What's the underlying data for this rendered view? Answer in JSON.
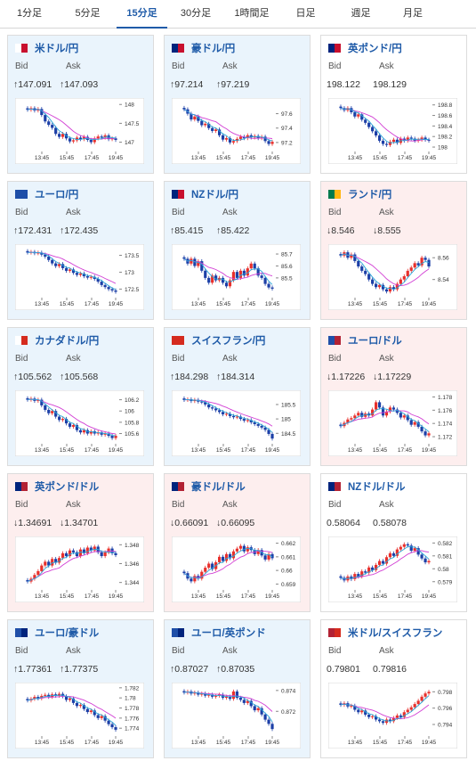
{
  "tabs": [
    {
      "label": "1分足",
      "active": false
    },
    {
      "label": "5分足",
      "active": false
    },
    {
      "label": "15分足",
      "active": true
    },
    {
      "label": "30分足",
      "active": false
    },
    {
      "label": "1時間足",
      "active": false
    },
    {
      "label": "日足",
      "active": false
    },
    {
      "label": "週足",
      "active": false
    },
    {
      "label": "月足",
      "active": false
    }
  ],
  "labels": {
    "bid": "Bid",
    "ask": "Ask"
  },
  "colors": {
    "up_bg": "#eaf4fc",
    "down_bg": "#fdeeee",
    "candle_up": "#e8302c",
    "candle_down": "#1c3fa7",
    "ma_long": "#d23fd4",
    "ma_short": "#2aa6d8",
    "link": "#1f5ba8"
  },
  "x_ticks": [
    "13:45",
    "15:45",
    "17:45",
    "19:45"
  ],
  "pairs": [
    {
      "id": "usdjpy",
      "name": "米ドル/円",
      "flag": [
        "#ffffff",
        "#c8102e"
      ],
      "trend": "up",
      "bid": "↑147.091",
      "ask": "↑147.093",
      "y_ticks": [
        "148",
        "147.5",
        "147"
      ],
      "chart_data": {
        "type": "candlestick",
        "ylim": [
          146.8,
          148.1
        ],
        "close": [
          147.86,
          147.9,
          147.84,
          147.88,
          147.72,
          147.55,
          147.46,
          147.38,
          147.22,
          147.14,
          147.22,
          147.1,
          147.02,
          147.05,
          147.12,
          147.08,
          147.14,
          147.06,
          147.0,
          147.1,
          147.15,
          147.12,
          147.18,
          147.08,
          147.1,
          147.06
        ]
      }
    },
    {
      "id": "audjpy",
      "name": "豪ドル/円",
      "flag": [
        "#00247d",
        "#c8102e"
      ],
      "trend": "up",
      "bid": "↑97.214",
      "ask": "↑97.219",
      "y_ticks": [
        "97.6",
        "97.4",
        "97.2"
      ],
      "chart_data": {
        "type": "candlestick",
        "ylim": [
          97.1,
          97.78
        ],
        "close": [
          97.66,
          97.6,
          97.52,
          97.56,
          97.5,
          97.44,
          97.46,
          97.4,
          97.36,
          97.38,
          97.3,
          97.24,
          97.26,
          97.2,
          97.22,
          97.25,
          97.28,
          97.26,
          97.3,
          97.27,
          97.29,
          97.26,
          97.28,
          97.22,
          97.18,
          97.21
        ]
      }
    },
    {
      "id": "gbpjpy",
      "name": "英ポンド/円",
      "flag": [
        "#00247d",
        "#c8102e"
      ],
      "trend": "flat",
      "bid": "198.122",
      "ask": "198.129",
      "y_ticks": [
        "198.8",
        "198.6",
        "198.4",
        "198.2",
        "198"
      ],
      "chart_data": {
        "type": "candlestick",
        "ylim": [
          197.95,
          198.88
        ],
        "close": [
          198.74,
          198.7,
          198.74,
          198.66,
          198.58,
          198.62,
          198.52,
          198.46,
          198.38,
          198.3,
          198.22,
          198.12,
          198.06,
          198.04,
          198.1,
          198.14,
          198.08,
          198.16,
          198.12,
          198.18,
          198.16,
          198.12,
          198.14,
          198.18,
          198.14,
          198.12
        ]
      }
    },
    {
      "id": "eurjpy",
      "name": "ユーロ/円",
      "flag": [
        "#1f4fa8",
        "#1f4fa8"
      ],
      "trend": "up",
      "bid": "↑172.431",
      "ask": "↑172.435",
      "y_ticks": [
        "173.5",
        "173",
        "172.5"
      ],
      "chart_data": {
        "type": "candlestick",
        "ylim": [
          172.3,
          173.75
        ],
        "close": [
          173.58,
          173.6,
          173.56,
          173.58,
          173.52,
          173.46,
          173.36,
          173.26,
          173.18,
          173.24,
          173.12,
          173.04,
          173.08,
          172.98,
          172.92,
          172.96,
          172.88,
          172.84,
          172.86,
          172.8,
          172.72,
          172.62,
          172.56,
          172.5,
          172.46,
          172.42
        ]
      }
    },
    {
      "id": "nzdjpy",
      "name": "NZドル/円",
      "flag": [
        "#00247d",
        "#c8102e"
      ],
      "trend": "up",
      "bid": "↑85.415",
      "ask": "↑85.422",
      "y_ticks": [
        "85.7",
        "85.6",
        "85.5"
      ],
      "chart_data": {
        "type": "candlestick",
        "ylim": [
          85.35,
          85.76
        ],
        "close": [
          85.66,
          85.62,
          85.66,
          85.6,
          85.64,
          85.56,
          85.5,
          85.46,
          85.52,
          85.48,
          85.5,
          85.46,
          85.43,
          85.48,
          85.55,
          85.5,
          85.56,
          85.52,
          85.58,
          85.62,
          85.58,
          85.52,
          85.5,
          85.45,
          85.42,
          85.41
        ]
      }
    },
    {
      "id": "zarjpy",
      "name": "ランド/円",
      "flag": [
        "#007a4d",
        "#ffb612"
      ],
      "trend": "down",
      "bid": "↓8.546",
      "ask": "↓8.555",
      "y_ticks": [
        "8.56",
        "8.54"
      ],
      "chart_data": {
        "type": "candlestick",
        "ylim": [
          8.525,
          8.57
        ],
        "close": [
          8.562,
          8.565,
          8.56,
          8.563,
          8.557,
          8.552,
          8.548,
          8.545,
          8.54,
          8.536,
          8.533,
          8.535,
          8.531,
          8.529,
          8.533,
          8.531,
          8.536,
          8.54,
          8.543,
          8.548,
          8.551,
          8.555,
          8.553,
          8.56,
          8.558,
          8.552
        ]
      }
    },
    {
      "id": "cadjpy",
      "name": "カナダドル/円",
      "flag": [
        "#ffffff",
        "#d52b1e"
      ],
      "trend": "up",
      "bid": "↑105.562",
      "ask": "↑105.568",
      "y_ticks": [
        "106.2",
        "106",
        "105.8",
        "105.6"
      ],
      "chart_data": {
        "type": "candlestick",
        "ylim": [
          105.45,
          106.32
        ],
        "close": [
          106.2,
          106.22,
          106.18,
          106.2,
          106.1,
          106.02,
          105.96,
          106.0,
          105.9,
          105.84,
          105.86,
          105.78,
          105.72,
          105.75,
          105.66,
          105.62,
          105.66,
          105.6,
          105.64,
          105.6,
          105.62,
          105.58,
          105.6,
          105.56,
          105.52,
          105.56
        ]
      }
    },
    {
      "id": "chfjpy",
      "name": "スイスフラン/円",
      "flag": [
        "#d52b1e",
        "#d52b1e"
      ],
      "trend": "up",
      "bid": "↑184.298",
      "ask": "↑184.314",
      "y_ticks": [
        "185.5",
        "185",
        "184.5"
      ],
      "chart_data": {
        "type": "candlestick",
        "ylim": [
          184.2,
          185.9
        ],
        "close": [
          185.66,
          185.68,
          185.62,
          185.66,
          185.6,
          185.58,
          185.5,
          185.4,
          185.36,
          185.3,
          185.24,
          185.16,
          185.18,
          185.1,
          185.06,
          185.08,
          185.0,
          184.94,
          184.96,
          184.88,
          184.82,
          184.76,
          184.7,
          184.62,
          184.48,
          184.32
        ]
      }
    },
    {
      "id": "eurusd",
      "name": "ユーロ/ドル",
      "flag": [
        "#1f4fa8",
        "#b22234"
      ],
      "trend": "down",
      "bid": "↓1.17226",
      "ask": "↓1.17229",
      "y_ticks": [
        "1.178",
        "1.176",
        "1.174",
        "1.172"
      ],
      "chart_data": {
        "type": "candlestick",
        "ylim": [
          1.1712,
          1.1786
        ],
        "close": [
          1.1736,
          1.1741,
          1.1746,
          1.1748,
          1.1752,
          1.1756,
          1.175,
          1.1755,
          1.1752,
          1.1761,
          1.1772,
          1.1764,
          1.1752,
          1.1758,
          1.1764,
          1.1761,
          1.1756,
          1.1749,
          1.1752,
          1.1745,
          1.1738,
          1.1742,
          1.1735,
          1.1728,
          1.1722,
          1.1725
        ]
      }
    },
    {
      "id": "gbpusd",
      "name": "英ポンド/ドル",
      "flag": [
        "#00247d",
        "#b22234"
      ],
      "trend": "down",
      "bid": "↓1.34691",
      "ask": "↓1.34701",
      "y_ticks": [
        "1.348",
        "1.346",
        "1.344"
      ],
      "chart_data": {
        "type": "candlestick",
        "ylim": [
          1.3434,
          1.3486
        ],
        "close": [
          1.3441,
          1.3444,
          1.3448,
          1.3452,
          1.3458,
          1.3462,
          1.3458,
          1.3465,
          1.3461,
          1.3466,
          1.3471,
          1.3468,
          1.3474,
          1.3472,
          1.3468,
          1.3475,
          1.3471,
          1.3477,
          1.3474,
          1.3478,
          1.3472,
          1.3468,
          1.3472,
          1.3476,
          1.3471,
          1.3469
        ]
      }
    },
    {
      "id": "audusd",
      "name": "豪ドル/ドル",
      "flag": [
        "#00247d",
        "#b22234"
      ],
      "trend": "down",
      "bid": "↓0.66091",
      "ask": "↓0.66095",
      "y_ticks": [
        "0.662",
        "0.661",
        "0.66",
        "0.659"
      ],
      "chart_data": {
        "type": "candlestick",
        "ylim": [
          0.6587,
          0.6623
        ],
        "close": [
          0.6598,
          0.6594,
          0.6592,
          0.6596,
          0.6594,
          0.6599,
          0.6602,
          0.6605,
          0.6601,
          0.6606,
          0.661,
          0.6607,
          0.6612,
          0.6609,
          0.6614,
          0.6616,
          0.6618,
          0.6614,
          0.6617,
          0.6615,
          0.6612,
          0.6615,
          0.6611,
          0.6608,
          0.6612,
          0.6609
        ]
      }
    },
    {
      "id": "nzdusd",
      "name": "NZドル/ドル",
      "flag": [
        "#00247d",
        "#b22234"
      ],
      "trend": "flat",
      "bid": "0.58064",
      "ask": "0.58078",
      "y_ticks": [
        "0.582",
        "0.581",
        "0.58",
        "0.579"
      ],
      "chart_data": {
        "type": "candlestick",
        "ylim": [
          0.5785,
          0.5823
        ],
        "close": [
          0.5793,
          0.5791,
          0.5794,
          0.5792,
          0.5796,
          0.5794,
          0.5798,
          0.5797,
          0.5801,
          0.5799,
          0.5803,
          0.5806,
          0.5804,
          0.5809,
          0.5812,
          0.581,
          0.5815,
          0.5817,
          0.5819,
          0.5818,
          0.5814,
          0.5816,
          0.5811,
          0.5808,
          0.5805,
          0.5806
        ]
      }
    },
    {
      "id": "euraud",
      "name": "ユーロ/豪ドル",
      "flag": [
        "#1f4fa8",
        "#00247d"
      ],
      "trend": "up",
      "bid": "↑1.77361",
      "ask": "↑1.77375",
      "y_ticks": [
        "1.782",
        "1.78",
        "1.778",
        "1.776",
        "1.774"
      ],
      "chart_data": {
        "type": "candlestick",
        "ylim": [
          1.7728,
          1.7825
        ],
        "close": [
          1.7795,
          1.7798,
          1.7802,
          1.7799,
          1.7804,
          1.7806,
          1.7802,
          1.7807,
          1.7804,
          1.7808,
          1.7803,
          1.7796,
          1.7799,
          1.779,
          1.7784,
          1.7786,
          1.7778,
          1.7772,
          1.7775,
          1.7766,
          1.776,
          1.7764,
          1.7755,
          1.7748,
          1.7742,
          1.7737
        ]
      }
    },
    {
      "id": "eurgbp",
      "name": "ユーロ/英ポンド",
      "flag": [
        "#1f4fa8",
        "#00247d"
      ],
      "trend": "up",
      "bid": "↑0.87027",
      "ask": "↑0.87035",
      "y_ticks": [
        "0.874",
        "0.872"
      ],
      "chart_data": {
        "type": "candlestick",
        "ylim": [
          0.8698,
          0.8745
        ],
        "close": [
          0.8738,
          0.8739,
          0.8737,
          0.8738,
          0.8736,
          0.8737,
          0.8735,
          0.8736,
          0.8734,
          0.8735,
          0.8736,
          0.8733,
          0.8734,
          0.8732,
          0.8739,
          0.8733,
          0.8731,
          0.8728,
          0.873,
          0.8725,
          0.8721,
          0.8723,
          0.8717,
          0.8712,
          0.8708,
          0.8703
        ]
      }
    },
    {
      "id": "usdchf",
      "name": "米ドル/スイスフラン",
      "flag": [
        "#b22234",
        "#d52b1e"
      ],
      "trend": "flat",
      "bid": "0.79801",
      "ask": "0.79816",
      "y_ticks": [
        "0.798",
        "0.796",
        "0.794"
      ],
      "chart_data": {
        "type": "candlestick",
        "ylim": [
          0.7928,
          0.7988
        ],
        "close": [
          0.7964,
          0.7966,
          0.7962,
          0.7963,
          0.7958,
          0.7955,
          0.7957,
          0.7952,
          0.7949,
          0.795,
          0.7946,
          0.7944,
          0.7942,
          0.7946,
          0.7944,
          0.7948,
          0.7951,
          0.7949,
          0.7955,
          0.7958,
          0.7961,
          0.7965,
          0.7969,
          0.7974,
          0.7978,
          0.798
        ]
      }
    }
  ]
}
